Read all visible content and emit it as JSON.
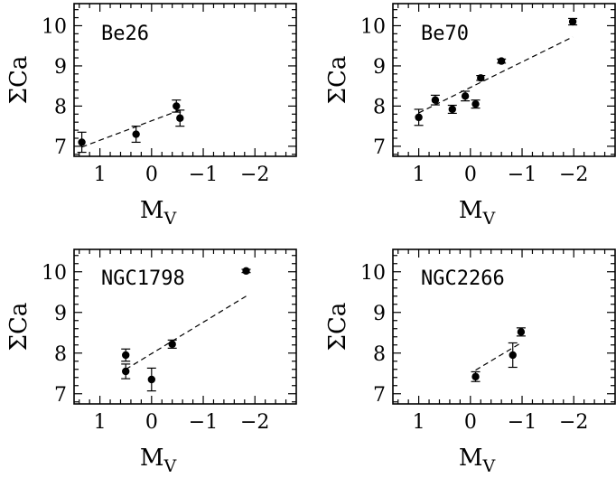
{
  "chart_data": [
    {
      "type": "scatter",
      "title": "Be26",
      "xlabel": "M_V",
      "ylabel": "ΣCa",
      "xlim": [
        1.5,
        -2.8
      ],
      "ylim": [
        6.75,
        10.55
      ],
      "xticks": [
        1,
        0,
        -1,
        -2
      ],
      "xtick_labels": [
        "1",
        "0",
        "−1",
        "−2"
      ],
      "yticks": [
        7,
        8,
        9,
        10
      ],
      "ytick_labels": [
        "7",
        "8",
        "9",
        "10"
      ],
      "points": [
        {
          "x": 1.35,
          "y": 7.1,
          "err": 0.25
        },
        {
          "x": 0.3,
          "y": 7.3,
          "err": 0.2
        },
        {
          "x": -0.48,
          "y": 8.0,
          "err": 0.15
        },
        {
          "x": -0.55,
          "y": 7.7,
          "err": 0.2
        }
      ],
      "fit": {
        "x": [
          1.35,
          -0.55
        ],
        "y": [
          6.98,
          7.9
        ]
      }
    },
    {
      "type": "scatter",
      "title": "Be70",
      "xlabel": "M_V",
      "ylabel": "ΣCa",
      "xlim": [
        1.5,
        -2.8
      ],
      "ylim": [
        6.75,
        10.55
      ],
      "xticks": [
        1,
        0,
        -1,
        -2
      ],
      "xtick_labels": [
        "1",
        "0",
        "−1",
        "−2"
      ],
      "yticks": [
        7,
        8,
        9,
        10
      ],
      "ytick_labels": [
        "7",
        "8",
        "9",
        "10"
      ],
      "points": [
        {
          "x": 1.0,
          "y": 7.72,
          "err": 0.2
        },
        {
          "x": 0.68,
          "y": 8.15,
          "err": 0.12
        },
        {
          "x": 0.35,
          "y": 7.92,
          "err": 0.1
        },
        {
          "x": 0.1,
          "y": 8.25,
          "err": 0.12
        },
        {
          "x": -0.1,
          "y": 8.05,
          "err": 0.1
        },
        {
          "x": -0.2,
          "y": 8.7,
          "err": 0.06
        },
        {
          "x": -0.6,
          "y": 9.12,
          "err": 0.05
        },
        {
          "x": -1.98,
          "y": 10.1,
          "err": 0.08
        }
      ],
      "fit": {
        "x": [
          1.0,
          -1.98
        ],
        "y": [
          7.83,
          9.72
        ]
      }
    },
    {
      "type": "scatter",
      "title": "NGC1798",
      "xlabel": "M_V",
      "ylabel": "ΣCa",
      "xlim": [
        1.5,
        -2.8
      ],
      "ylim": [
        6.75,
        10.55
      ],
      "xticks": [
        1,
        0,
        -1,
        -2
      ],
      "xtick_labels": [
        "1",
        "0",
        "−1",
        "−2"
      ],
      "yticks": [
        7,
        8,
        9,
        10
      ],
      "ytick_labels": [
        "7",
        "8",
        "9",
        "10"
      ],
      "points": [
        {
          "x": 0.5,
          "y": 7.95,
          "err": 0.15
        },
        {
          "x": 0.5,
          "y": 7.55,
          "err": 0.18
        },
        {
          "x": 0.0,
          "y": 7.35,
          "err": 0.28
        },
        {
          "x": -0.4,
          "y": 8.22,
          "err": 0.1
        },
        {
          "x": -1.83,
          "y": 10.02,
          "err": 0.04
        }
      ],
      "fit": {
        "x": [
          0.5,
          -1.83
        ],
        "y": [
          7.6,
          9.4
        ]
      }
    },
    {
      "type": "scatter",
      "title": "NGC2266",
      "xlabel": "M_V",
      "ylabel": "ΣCa",
      "xlim": [
        1.5,
        -2.8
      ],
      "ylim": [
        6.75,
        10.55
      ],
      "xticks": [
        1,
        0,
        -1,
        -2
      ],
      "xtick_labels": [
        "1",
        "0",
        "−1",
        "−2"
      ],
      "yticks": [
        7,
        8,
        9,
        10
      ],
      "ytick_labels": [
        "7",
        "8",
        "9",
        "10"
      ],
      "points": [
        {
          "x": -0.1,
          "y": 7.42,
          "err": 0.12
        },
        {
          "x": -0.82,
          "y": 7.95,
          "err": 0.3
        },
        {
          "x": -0.98,
          "y": 8.52,
          "err": 0.1
        }
      ],
      "fit": {
        "x": [
          -0.1,
          -0.98
        ],
        "y": [
          7.58,
          8.25
        ]
      }
    }
  ]
}
